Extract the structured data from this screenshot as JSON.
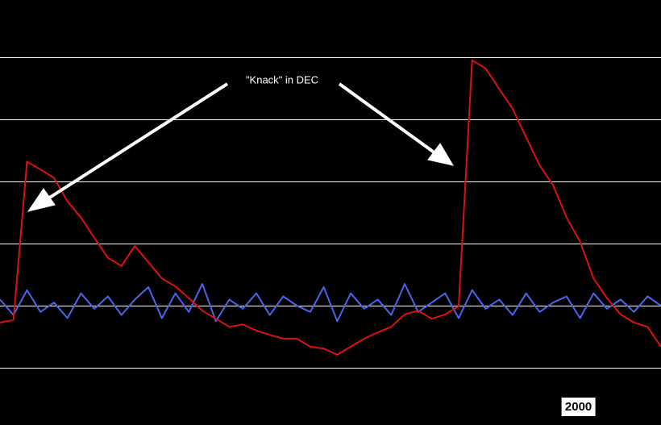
{
  "chart_data": {
    "type": "line",
    "annotation": "\"Knack\" in DEC",
    "x": [
      1957,
      1958,
      1959,
      1960,
      1961,
      1962,
      1963,
      1964,
      1965,
      1966,
      1967,
      1968,
      1969,
      1970,
      1971,
      1972,
      1973,
      1974,
      1975,
      1976,
      1977,
      1978,
      1979,
      1980,
      1981,
      1982,
      1983,
      1984,
      1985,
      1986,
      1987,
      1988,
      1989,
      1990,
      1991,
      1992,
      1993,
      1994,
      1995,
      1996,
      1997,
      1998,
      1999,
      2000,
      2001,
      2002,
      2003,
      2004,
      2005,
      2006
    ],
    "xlim": [
      1957,
      2006
    ],
    "xticks": [
      2000
    ],
    "ylim": [
      -0.92,
      5.92
    ],
    "yticks": [
      0,
      1,
      2,
      3,
      4,
      5
    ],
    "grid": true,
    "series": [
      {
        "color": "#e01010",
        "values": [
          0.73,
          0.77,
          3.32,
          3.19,
          3.06,
          2.68,
          2.42,
          2.09,
          1.77,
          1.64,
          1.96,
          1.7,
          1.44,
          1.31,
          1.12,
          0.92,
          0.79,
          0.66,
          0.7,
          0.6,
          0.53,
          0.47,
          0.47,
          0.34,
          0.31,
          0.21,
          0.34,
          0.47,
          0.57,
          0.66,
          0.86,
          0.92,
          0.79,
          0.86,
          0.99,
          4.95,
          4.82,
          4.49,
          4.17,
          3.71,
          3.26,
          2.94,
          2.42,
          2.03,
          1.44,
          1.12,
          0.86,
          0.73,
          0.66,
          0.34
        ]
      },
      {
        "color": "#4a64ee",
        "values": [
          1.1,
          0.85,
          1.25,
          0.9,
          1.05,
          0.8,
          1.2,
          0.95,
          1.15,
          0.85,
          1.1,
          1.3,
          0.8,
          1.2,
          0.9,
          1.35,
          0.75,
          1.1,
          0.95,
          1.2,
          0.85,
          1.15,
          1.0,
          0.9,
          1.3,
          0.75,
          1.2,
          0.95,
          1.1,
          0.85,
          1.35,
          0.9,
          1.05,
          1.2,
          0.8,
          1.25,
          0.95,
          1.1,
          0.85,
          1.2,
          0.9,
          1.05,
          1.15,
          0.8,
          1.2,
          0.95,
          1.1,
          0.9,
          1.15,
          1.0
        ]
      }
    ]
  }
}
